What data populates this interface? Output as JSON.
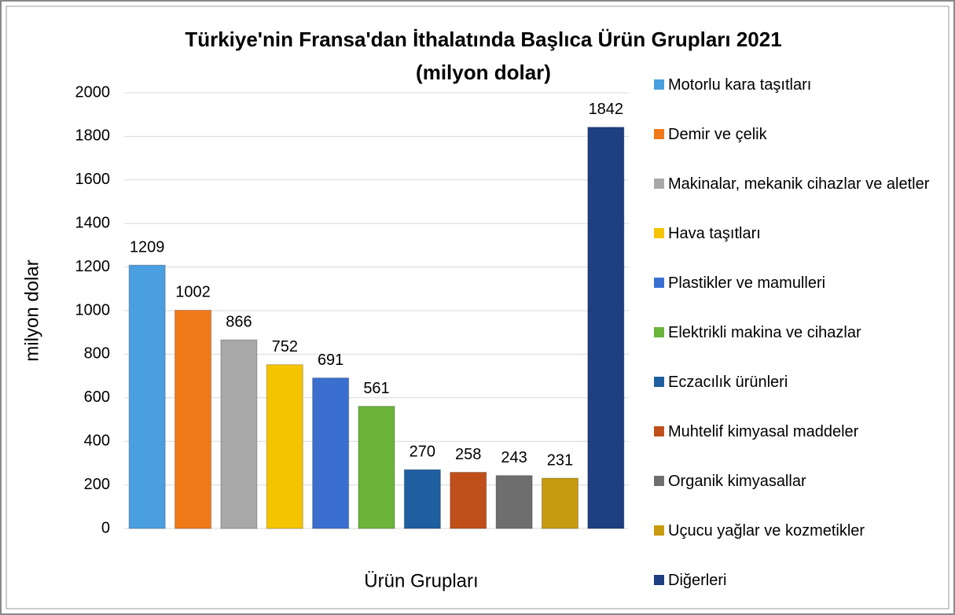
{
  "chart_data": {
    "type": "bar",
    "title": "Türkiye'nin Fransa'dan İthalatında Başlıca Ürün Grupları 2021",
    "subtitle": "(milyon dolar)",
    "x_label": "Ürün Grupları",
    "y_label": "milyon dolar",
    "ylim": [
      0,
      2000
    ],
    "yticks": [
      0,
      200,
      400,
      600,
      800,
      1000,
      1200,
      1400,
      1600,
      1800,
      2000
    ],
    "grid": true,
    "legend": "right",
    "series": [
      {
        "name": "Motorlu kara taşıtları",
        "color": "#4a9fe0",
        "values": [
          1209
        ]
      },
      {
        "name": "Demir ve çelik",
        "color": "#f07a1a",
        "values": [
          1002
        ]
      },
      {
        "name": "Makinalar, mekanik cihazlar ve aletler",
        "color": "#a8a8a8",
        "values": [
          866
        ]
      },
      {
        "name": "Hava taşıtları",
        "color": "#f5c400",
        "values": [
          752
        ]
      },
      {
        "name": "Plastikler ve mamulleri",
        "color": "#3a6fd0",
        "values": [
          691
        ]
      },
      {
        "name": "Elektrikli makina ve cihazlar",
        "color": "#6ab53a",
        "values": [
          561
        ]
      },
      {
        "name": "Eczacılık ürünleri",
        "color": "#1f5fa0",
        "values": [
          270
        ]
      },
      {
        "name": "Muhtelif kimyasal maddeler",
        "color": "#c0501a",
        "values": [
          258
        ]
      },
      {
        "name": "Organik kimyasallar",
        "color": "#6e6e6e",
        "values": [
          243
        ]
      },
      {
        "name": "Uçucu yağlar ve kozmetikler",
        "color": "#c79a10",
        "values": [
          231
        ]
      },
      {
        "name": "Diğerleri",
        "color": "#1e3f80",
        "values": [
          1842
        ]
      }
    ]
  }
}
